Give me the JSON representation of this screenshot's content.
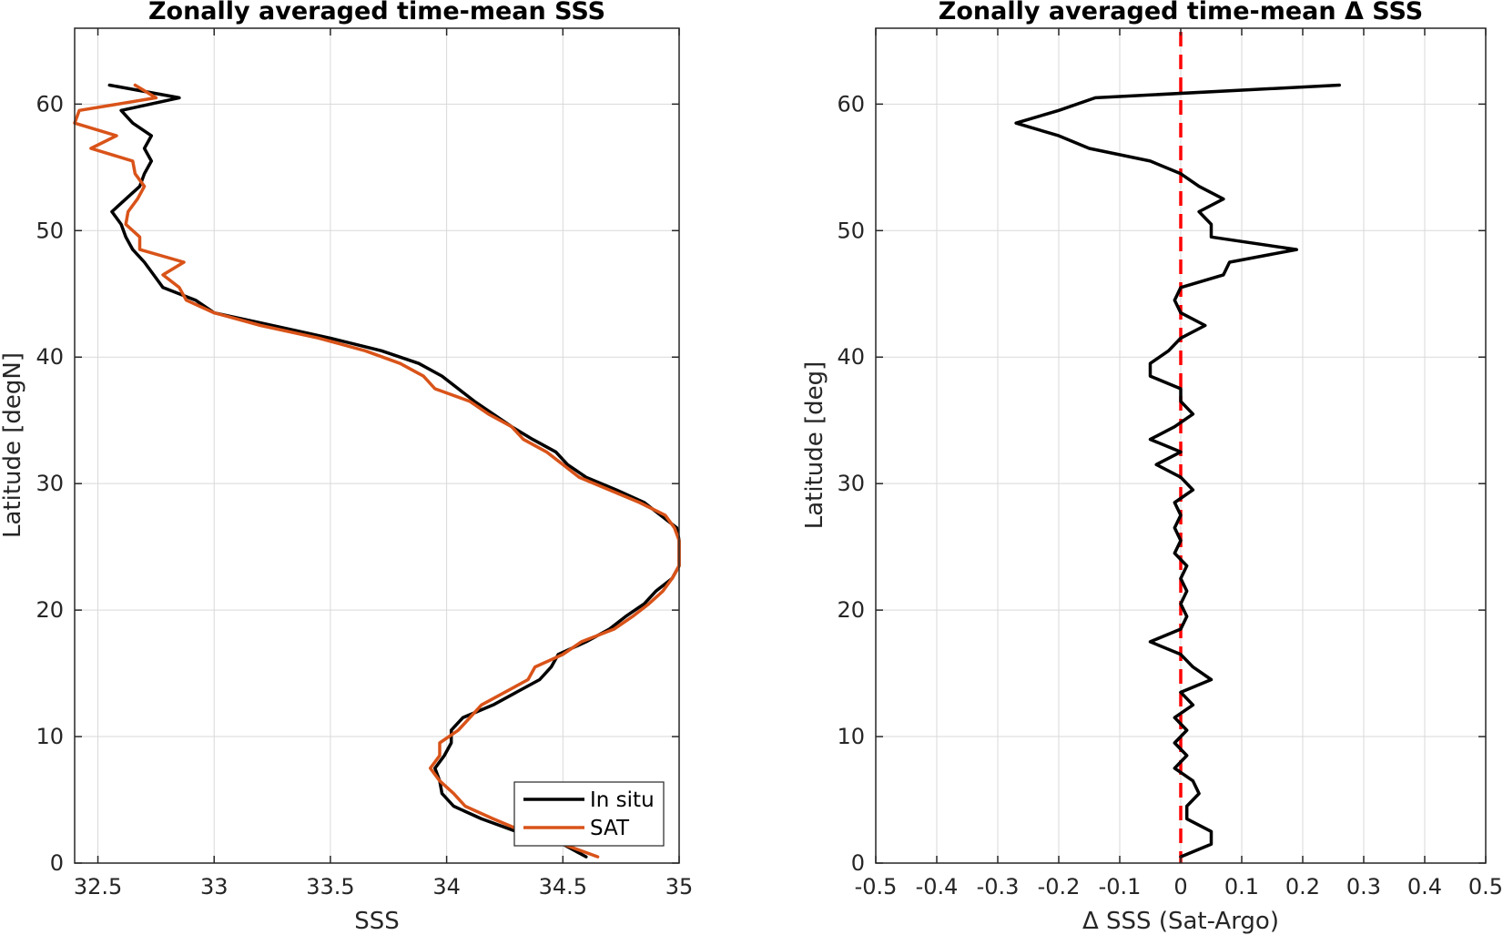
{
  "chart_data": [
    {
      "type": "line",
      "title": "Zonally averaged time-mean SSS",
      "xlabel": "SSS",
      "ylabel": "Latitude [degN]",
      "xlim": [
        32.4,
        35
      ],
      "ylim": [
        0,
        66
      ],
      "xticks": [
        32.5,
        33,
        33.5,
        34,
        34.5,
        35
      ],
      "xtick_labels": [
        "32.5",
        "33",
        "33.5",
        "34",
        "34.5",
        "35"
      ],
      "yticks": [
        0,
        10,
        20,
        30,
        40,
        50,
        60
      ],
      "ytick_labels": [
        "0",
        "10",
        "20",
        "30",
        "40",
        "50",
        "60"
      ],
      "grid": true,
      "legend": {
        "position": "bottom-right",
        "entries": [
          "In situ",
          "SAT"
        ]
      },
      "series": [
        {
          "name": "In situ",
          "color": "#000000",
          "points": [
            [
              34.6,
              0.5
            ],
            [
              34.5,
              1.5
            ],
            [
              34.3,
              2.5
            ],
            [
              34.15,
              3.5
            ],
            [
              34.03,
              4.5
            ],
            [
              33.98,
              5.5
            ],
            [
              33.97,
              6.5
            ],
            [
              33.95,
              7.5
            ],
            [
              33.99,
              8.5
            ],
            [
              34.02,
              9.5
            ],
            [
              34.02,
              10.5
            ],
            [
              34.07,
              11.5
            ],
            [
              34.2,
              12.5
            ],
            [
              34.3,
              13.5
            ],
            [
              34.4,
              14.5
            ],
            [
              34.45,
              15.5
            ],
            [
              34.48,
              16.5
            ],
            [
              34.6,
              17.5
            ],
            [
              34.7,
              18.5
            ],
            [
              34.77,
              19.5
            ],
            [
              34.85,
              20.5
            ],
            [
              34.9,
              21.5
            ],
            [
              34.97,
              22.5
            ],
            [
              35.0,
              23.5
            ],
            [
              35.0,
              24.5
            ],
            [
              35.0,
              25.5
            ],
            [
              34.99,
              26.5
            ],
            [
              34.92,
              27.5
            ],
            [
              34.85,
              28.5
            ],
            [
              34.73,
              29.5
            ],
            [
              34.6,
              30.5
            ],
            [
              34.52,
              31.5
            ],
            [
              34.47,
              32.5
            ],
            [
              34.37,
              33.5
            ],
            [
              34.28,
              34.5
            ],
            [
              34.2,
              35.5
            ],
            [
              34.12,
              36.5
            ],
            [
              34.05,
              37.5
            ],
            [
              33.98,
              38.5
            ],
            [
              33.88,
              39.5
            ],
            [
              33.72,
              40.5
            ],
            [
              33.5,
              41.5
            ],
            [
              33.25,
              42.5
            ],
            [
              33.0,
              43.5
            ],
            [
              32.92,
              44.5
            ],
            [
              32.78,
              45.5
            ],
            [
              32.74,
              46.5
            ],
            [
              32.7,
              47.5
            ],
            [
              32.65,
              48.5
            ],
            [
              32.62,
              49.5
            ],
            [
              32.6,
              50.5
            ],
            [
              32.56,
              51.5
            ],
            [
              32.62,
              52.5
            ],
            [
              32.68,
              53.5
            ],
            [
              32.7,
              54.5
            ],
            [
              32.73,
              55.5
            ],
            [
              32.7,
              56.5
            ],
            [
              32.73,
              57.5
            ],
            [
              32.65,
              58.5
            ],
            [
              32.6,
              59.5
            ],
            [
              32.85,
              60.5
            ],
            [
              32.55,
              61.5
            ]
          ]
        },
        {
          "name": "SAT",
          "color": "#d95319",
          "points": [
            [
              34.65,
              0.5
            ],
            [
              34.5,
              1.5
            ],
            [
              34.33,
              2.5
            ],
            [
              34.2,
              3.5
            ],
            [
              34.08,
              4.5
            ],
            [
              34.03,
              5.5
            ],
            [
              33.97,
              6.5
            ],
            [
              33.93,
              7.5
            ],
            [
              33.97,
              8.5
            ],
            [
              33.97,
              9.5
            ],
            [
              34.05,
              10.5
            ],
            [
              34.1,
              11.5
            ],
            [
              34.15,
              12.5
            ],
            [
              34.25,
              13.5
            ],
            [
              34.35,
              14.5
            ],
            [
              34.38,
              15.5
            ],
            [
              34.5,
              16.5
            ],
            [
              34.58,
              17.5
            ],
            [
              34.72,
              18.5
            ],
            [
              34.8,
              19.5
            ],
            [
              34.87,
              20.5
            ],
            [
              34.93,
              21.5
            ],
            [
              34.97,
              22.5
            ],
            [
              35.0,
              23.5
            ],
            [
              35.0,
              24.5
            ],
            [
              35.0,
              25.5
            ],
            [
              34.98,
              26.5
            ],
            [
              34.94,
              27.5
            ],
            [
              34.83,
              28.5
            ],
            [
              34.7,
              29.5
            ],
            [
              34.57,
              30.5
            ],
            [
              34.5,
              31.5
            ],
            [
              34.43,
              32.5
            ],
            [
              34.33,
              33.5
            ],
            [
              34.28,
              34.5
            ],
            [
              34.18,
              35.5
            ],
            [
              34.1,
              36.5
            ],
            [
              33.95,
              37.5
            ],
            [
              33.9,
              38.5
            ],
            [
              33.8,
              39.5
            ],
            [
              33.65,
              40.5
            ],
            [
              33.45,
              41.5
            ],
            [
              33.2,
              42.5
            ],
            [
              33.0,
              43.5
            ],
            [
              32.88,
              44.5
            ],
            [
              32.85,
              45.5
            ],
            [
              32.78,
              46.5
            ],
            [
              32.87,
              47.5
            ],
            [
              32.68,
              48.5
            ],
            [
              32.68,
              49.5
            ],
            [
              32.62,
              50.5
            ],
            [
              32.63,
              51.5
            ],
            [
              32.67,
              52.5
            ],
            [
              32.7,
              53.5
            ],
            [
              32.66,
              54.5
            ],
            [
              32.65,
              55.5
            ],
            [
              32.47,
              56.5
            ],
            [
              32.58,
              57.5
            ],
            [
              32.4,
              58.5
            ],
            [
              32.42,
              59.5
            ],
            [
              32.75,
              60.5
            ],
            [
              32.66,
              61.5
            ]
          ]
        }
      ]
    },
    {
      "type": "line",
      "title": "Zonally averaged time-mean Δ SSS",
      "xlabel": "Δ SSS (Sat-Argo)",
      "ylabel": "Latitude [deg]",
      "xlim": [
        -0.5,
        0.5
      ],
      "ylim": [
        0,
        66
      ],
      "xticks": [
        -0.5,
        -0.4,
        -0.3,
        -0.2,
        -0.1,
        0,
        0.1,
        0.2,
        0.3,
        0.4,
        0.5
      ],
      "xtick_labels": [
        "-0.5",
        "-0.4",
        "-0.3",
        "-0.2",
        "-0.1",
        "0",
        "0.1",
        "0.2",
        "0.3",
        "0.4",
        "0.5"
      ],
      "yticks": [
        0,
        10,
        20,
        30,
        40,
        50,
        60
      ],
      "ytick_labels": [
        "0",
        "10",
        "20",
        "30",
        "40",
        "50",
        "60"
      ],
      "grid": true,
      "reference_line": {
        "x": 0,
        "color": "#ff0000",
        "style": "dashed"
      },
      "series": [
        {
          "color": "#000000",
          "points": [
            [
              0.0,
              0.5
            ],
            [
              0.05,
              1.5
            ],
            [
              0.05,
              2.5
            ],
            [
              0.01,
              3.5
            ],
            [
              0.01,
              4.5
            ],
            [
              0.03,
              5.5
            ],
            [
              0.02,
              6.5
            ],
            [
              -0.01,
              7.5
            ],
            [
              0.01,
              8.5
            ],
            [
              -0.01,
              9.5
            ],
            [
              0.01,
              10.5
            ],
            [
              -0.01,
              11.5
            ],
            [
              0.02,
              12.5
            ],
            [
              0.0,
              13.5
            ],
            [
              0.05,
              14.5
            ],
            [
              0.02,
              15.5
            ],
            [
              0.0,
              16.5
            ],
            [
              -0.05,
              17.5
            ],
            [
              0.0,
              18.5
            ],
            [
              0.01,
              19.5
            ],
            [
              0.0,
              20.5
            ],
            [
              0.01,
              21.5
            ],
            [
              0.0,
              22.5
            ],
            [
              0.01,
              23.5
            ],
            [
              -0.01,
              24.5
            ],
            [
              0.0,
              25.5
            ],
            [
              -0.01,
              26.5
            ],
            [
              0.0,
              27.5
            ],
            [
              -0.01,
              28.5
            ],
            [
              0.02,
              29.5
            ],
            [
              0.0,
              30.5
            ],
            [
              -0.04,
              31.5
            ],
            [
              0.0,
              32.5
            ],
            [
              -0.05,
              33.5
            ],
            [
              -0.01,
              34.5
            ],
            [
              0.02,
              35.5
            ],
            [
              0.0,
              36.5
            ],
            [
              0.0,
              37.5
            ],
            [
              -0.05,
              38.5
            ],
            [
              -0.05,
              39.5
            ],
            [
              -0.02,
              40.5
            ],
            [
              0.0,
              41.5
            ],
            [
              0.04,
              42.5
            ],
            [
              0.0,
              43.5
            ],
            [
              -0.01,
              44.5
            ],
            [
              0.0,
              45.5
            ],
            [
              0.07,
              46.5
            ],
            [
              0.08,
              47.5
            ],
            [
              0.19,
              48.5
            ],
            [
              0.05,
              49.5
            ],
            [
              0.05,
              50.5
            ],
            [
              0.03,
              51.5
            ],
            [
              0.07,
              52.5
            ],
            [
              0.03,
              53.5
            ],
            [
              0.0,
              54.5
            ],
            [
              -0.05,
              55.5
            ],
            [
              -0.15,
              56.5
            ],
            [
              -0.2,
              57.5
            ],
            [
              -0.27,
              58.5
            ],
            [
              -0.2,
              59.5
            ],
            [
              -0.14,
              60.5
            ],
            [
              0.26,
              61.5
            ]
          ]
        }
      ]
    }
  ]
}
